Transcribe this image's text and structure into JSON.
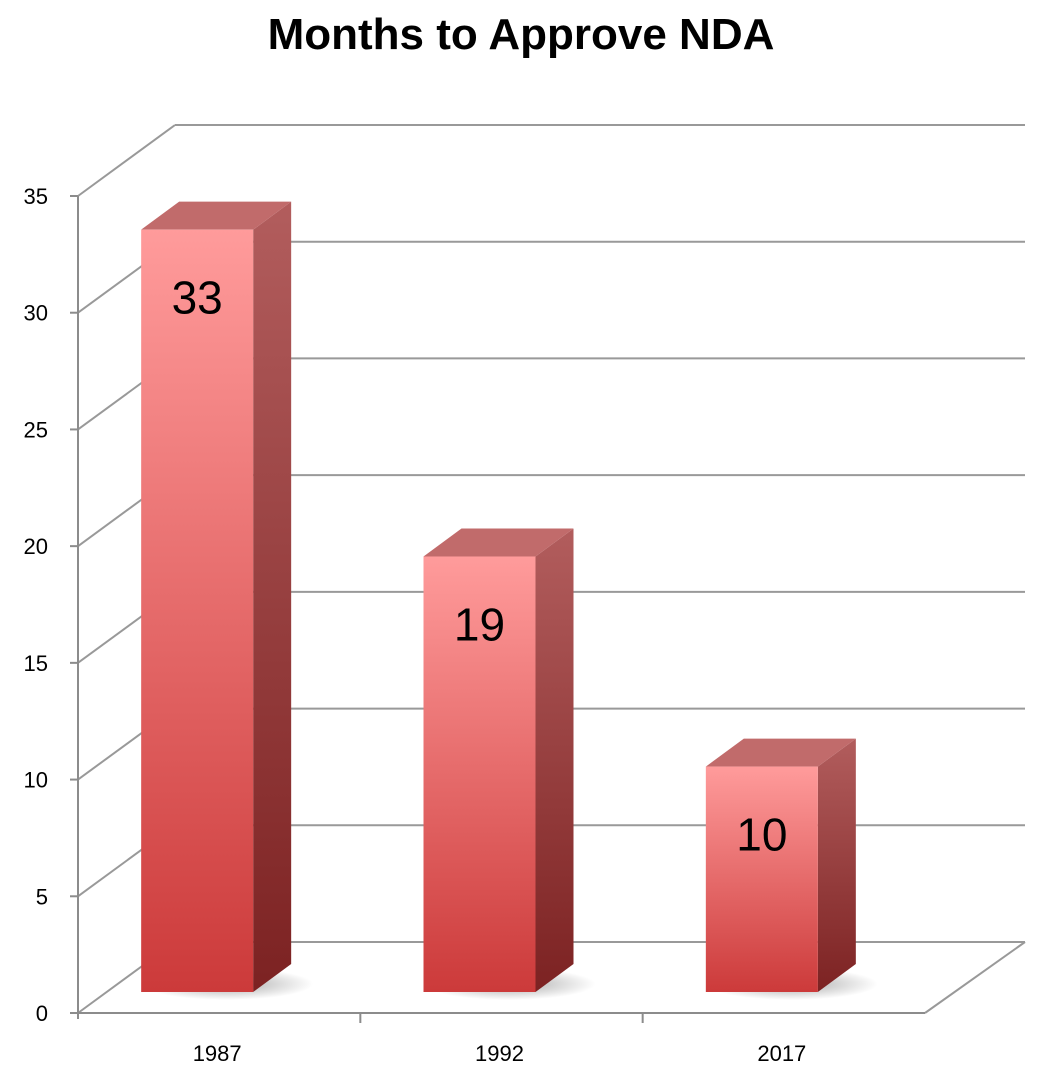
{
  "chart_data": {
    "type": "bar",
    "title": "Months to Approve NDA",
    "xlabel": "",
    "ylabel": "",
    "categories": [
      "1987",
      "1992",
      "2017"
    ],
    "series": [
      {
        "values": [
          33,
          19,
          10
        ]
      }
    ],
    "data_labels": [
      "33",
      "19",
      "10"
    ],
    "ylim": [
      0,
      35
    ],
    "yticks": [
      "0",
      "5",
      "10",
      "15",
      "20",
      "25",
      "30",
      "35"
    ],
    "grid": true,
    "three_d": true,
    "colors": {
      "bar_front_top": "#ff9b9b",
      "bar_front_bottom": "#cc3a3a",
      "bar_side_top": "#b25d5d",
      "bar_side_bottom": "#7c2222",
      "bar_top": "#c16b6b",
      "grid": "#999999",
      "axis": "#8c8c8c"
    }
  }
}
